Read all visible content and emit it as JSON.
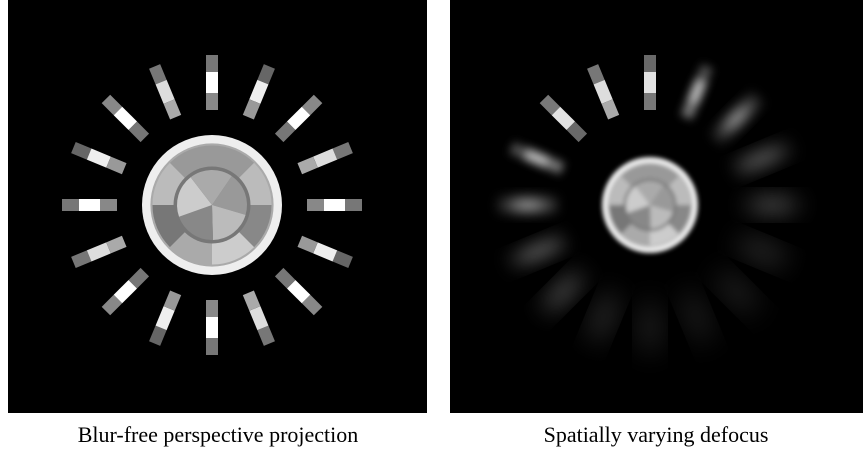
{
  "panels": [
    {
      "caption": "Blur-free perspective projection"
    },
    {
      "caption": "Spatially varying defocus"
    }
  ]
}
